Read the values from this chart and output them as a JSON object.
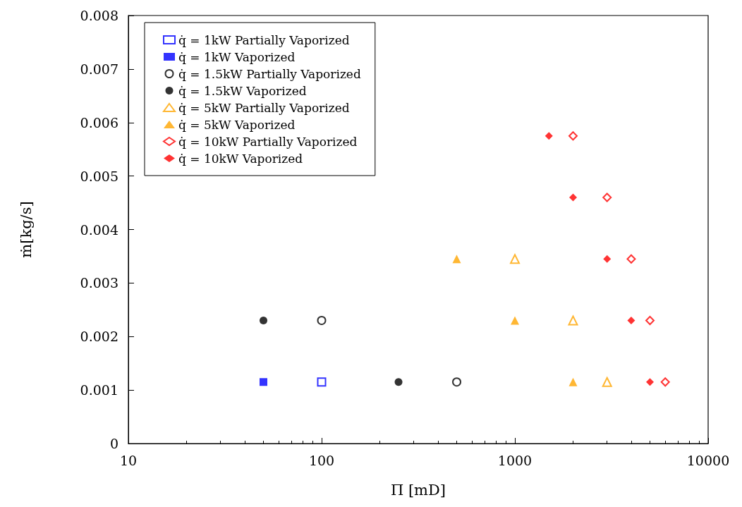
{
  "chart_data": {
    "type": "scatter",
    "xlabel": "Π [mD]",
    "ylabel": "ṁ[kg/s]",
    "log": "x",
    "xlim": [
      10,
      10000
    ],
    "xticks": [
      10,
      100,
      1000,
      10000
    ],
    "ylim": [
      0,
      0.008
    ],
    "yticks": [
      0,
      0.001,
      0.002,
      0.003,
      0.004,
      0.005,
      0.006,
      0.007,
      0.008
    ],
    "grid": false,
    "legend": "top left",
    "series": [
      {
        "name": "q̇ = 1kW Partially Vaporized",
        "color": "#0000ff",
        "marker": "square",
        "x": [
          100
        ],
        "values": [
          0.00115
        ]
      },
      {
        "name": "q̇ = 1kW Vaporized",
        "color": "#0000ff",
        "marker": "square",
        "x": [
          50
        ],
        "values": [
          0.00115
        ]
      },
      {
        "name": "q̇ = 1.5kW Partially Vaporized",
        "color": "#000000",
        "marker": "circle",
        "x": [
          100,
          500
        ],
        "values": [
          0.0023,
          0.00115
        ]
      },
      {
        "name": "q̇ = 1.5kW Vaporized",
        "color": "#000000",
        "marker": "circle",
        "x": [
          50,
          250
        ],
        "values": [
          0.0023,
          0.00115
        ]
      },
      {
        "name": "q̇ = 5kW Partially Vaporized",
        "color": "#ffa500",
        "marker": "triangle",
        "x": [
          1000,
          2000,
          3000
        ],
        "values": [
          0.00345,
          0.0023,
          0.00115
        ]
      },
      {
        "name": "q̇ = 5kW Vaporized",
        "color": "#ffa500",
        "marker": "triangle",
        "x": [
          500,
          1000,
          2000
        ],
        "values": [
          0.00345,
          0.0023,
          0.00115
        ]
      },
      {
        "name": "q̇ = 10kW Partially Vaporized",
        "color": "#ff0000",
        "marker": "diamond",
        "x": [
          2000,
          3000,
          4000,
          5000,
          6000
        ],
        "values": [
          0.00575,
          0.0046,
          0.00345,
          0.0023,
          0.00115
        ]
      },
      {
        "name": "q̇ = 10kW Vaporized",
        "color": "#ff0000",
        "marker": "diamond",
        "x": [
          1500,
          2000,
          3000,
          4000,
          5000
        ],
        "values": [
          0.00575,
          0.0046,
          0.00345,
          0.0023,
          0.00115
        ]
      }
    ]
  }
}
